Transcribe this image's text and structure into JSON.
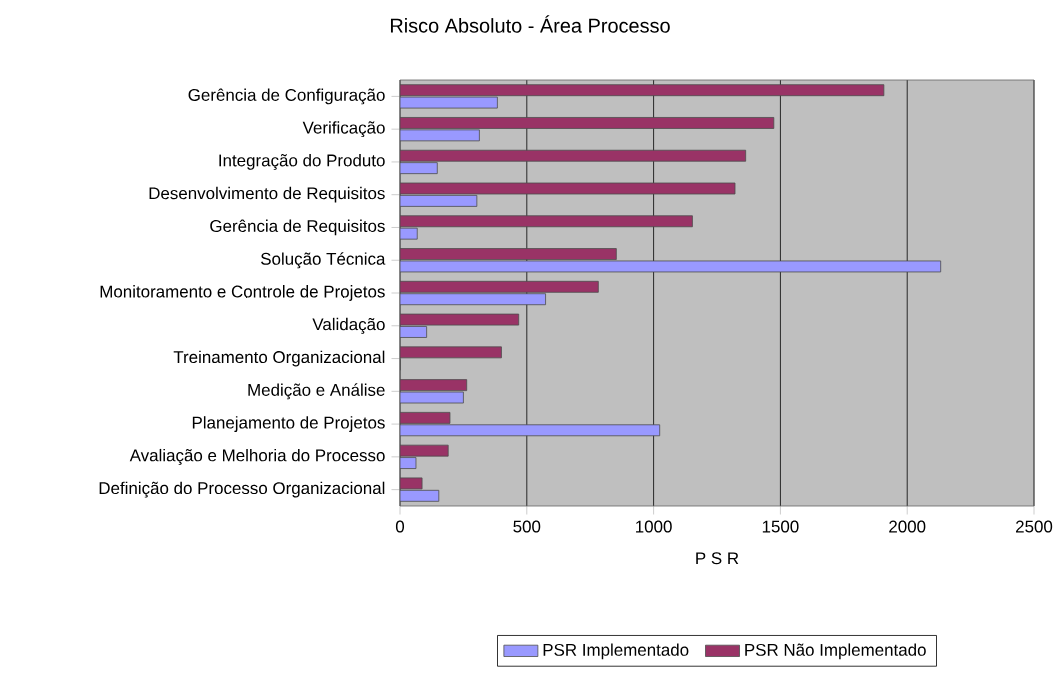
{
  "chart_data": {
    "type": "bar",
    "orientation": "horizontal",
    "title": "Risco Absoluto - Área Processo",
    "xlabel": "P S R",
    "categories": [
      "Gerência de Configuração",
      "Verificação",
      "Integração do Produto",
      "Desenvolvimento de Requisitos",
      "Gerência de Requisitos",
      "Solução Técnica",
      "Monitoramento e Controle de Projetos",
      "Validação",
      "Treinamento Organizacional",
      "Medição e Análise",
      "Planejamento de Projetos",
      "Avaliação e Melhoria do Processo",
      "Definição do Processo Organizacional"
    ],
    "series": [
      {
        "name": "PSR Implementado",
        "color": "#9999ff",
        "values": [
          384,
          313,
          147,
          303,
          68,
          2132,
          574,
          105,
          0,
          250,
          1024,
          63,
          153
        ]
      },
      {
        "name": "PSR Não Implementado",
        "color": "#993366",
        "values": [
          1908,
          1474,
          1363,
          1321,
          1153,
          853,
          782,
          468,
          400,
          263,
          197,
          190,
          87
        ]
      }
    ],
    "xlim": [
      0,
      2500
    ],
    "xticks": [
      0,
      500,
      1000,
      1500,
      2000,
      2500
    ],
    "grid": "x",
    "legend": "bottom"
  }
}
